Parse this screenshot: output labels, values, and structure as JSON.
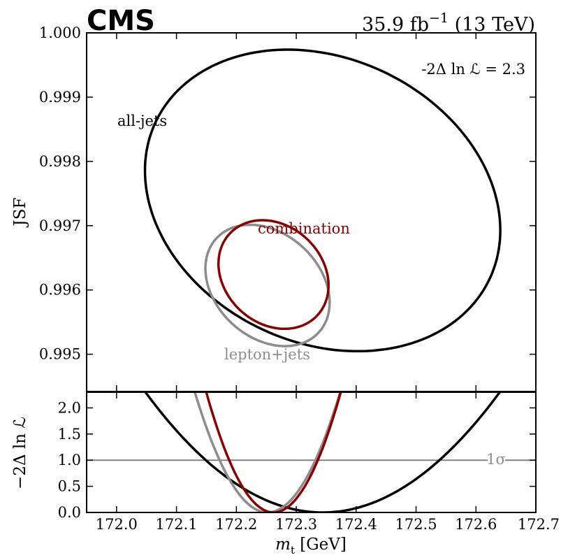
{
  "header": {
    "experiment": "CMS",
    "lumi_value": "35.9 fb",
    "lumi_exp": "−1",
    "energy": " (13 TeV)"
  },
  "colors": {
    "all_jets": "#000000",
    "lepton_jets": "#8c8c8c",
    "combination": "#8b0000",
    "sigma_line": "#808080"
  },
  "chart_data": [
    {
      "type": "contour",
      "panel": "top",
      "ylabel": "JSF",
      "xlim": [
        171.95,
        172.7
      ],
      "ylim": [
        0.99442,
        1.0
      ],
      "yticks": [
        "0.995",
        "0.996",
        "0.997",
        "0.998",
        "0.999",
        "1.000"
      ],
      "legend_note": "-2Δ ln ℒ = 2.3",
      "series": [
        {
          "name": "all-jets",
          "color": "#000000",
          "ellipse": {
            "center_mt": 172.344,
            "center_jsf": 0.997393,
            "a_mt": 0.308,
            "b_jsf": 0.002215,
            "rot_deg": 25
          }
        },
        {
          "name": "lepton+jets",
          "color": "#8c8c8c",
          "ellipse": {
            "center_mt": 172.252,
            "center_jsf": 0.99607,
            "a_mt": 0.116,
            "b_jsf": 0.00081,
            "rot_deg": 42.5
          }
        },
        {
          "name": "combination",
          "color": "#8b0000",
          "ellipse": {
            "center_mt": 172.262,
            "center_jsf": 0.99624,
            "a_mt": 0.1,
            "b_jsf": 0.00076,
            "rot_deg": 43
          }
        }
      ]
    },
    {
      "type": "line",
      "panel": "bottom",
      "xlabel": "m_t [GeV]",
      "ylabel": "−2Δ ln ℒ",
      "xlim": [
        171.95,
        172.7
      ],
      "ylim": [
        0.0,
        2.3
      ],
      "xticks": [
        "172.0",
        "172.1",
        "172.2",
        "172.3",
        "172.4",
        "172.5",
        "172.6",
        "172.7"
      ],
      "yticks": [
        "0.0",
        "0.5",
        "1.0",
        "1.5",
        "2.0"
      ],
      "series": [
        {
          "name": "all-jets",
          "color": "#000000",
          "parabola": {
            "min_mt": 172.344,
            "sigma": 0.195
          }
        },
        {
          "name": "lepton+jets",
          "color": "#8c8c8c",
          "parabola": {
            "min_mt": 172.252,
            "sigma": 0.08
          }
        },
        {
          "name": "combination",
          "color": "#8b0000",
          "parabola": {
            "min_mt": 172.262,
            "sigma": 0.074
          }
        }
      ],
      "reference_line": {
        "y": 1.0,
        "label": "1σ"
      }
    }
  ]
}
